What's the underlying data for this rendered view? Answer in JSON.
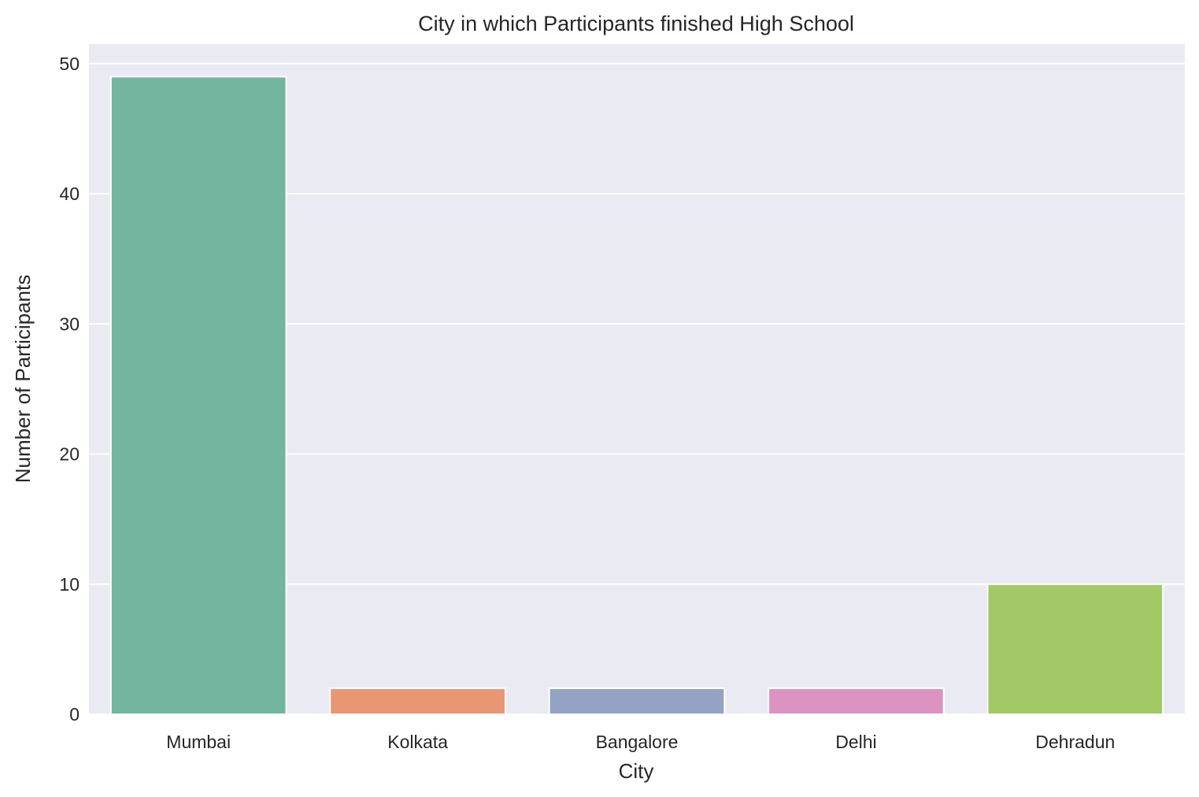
{
  "chart_data": {
    "type": "bar",
    "title": "City in which Participants finished High School",
    "xlabel": "City",
    "ylabel": "Number of Participants",
    "categories": [
      "Mumbai",
      "Kolkata",
      "Bangalore",
      "Delhi",
      "Dehradun"
    ],
    "values": [
      49,
      2,
      2,
      2,
      10
    ],
    "colors": [
      "#74b59f",
      "#e99675",
      "#94a2c3",
      "#db94c1",
      "#a2c966"
    ],
    "ylim": [
      0,
      51.5
    ],
    "yticks": [
      0,
      10,
      20,
      30,
      40,
      50
    ],
    "grid": true,
    "background": "#eaeaf2",
    "legend": "none"
  }
}
